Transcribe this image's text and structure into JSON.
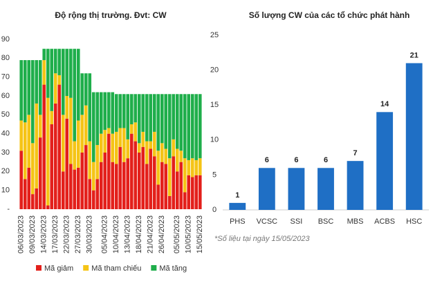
{
  "chart_data": [
    {
      "type": "stacked_bar",
      "title": "Độ rộng thị trường. Đvt: CW",
      "categories": [
        "06/03/2023",
        null,
        null,
        "09/03/2023",
        null,
        null,
        "14/03/2023",
        null,
        null,
        "17/03/2023",
        null,
        null,
        "22/03/2023",
        null,
        null,
        "27/03/2023",
        null,
        null,
        "30/03/2023",
        null,
        null,
        null,
        "05/04/2023",
        null,
        null,
        "10/04/2023",
        null,
        null,
        "13/04/2023",
        null,
        null,
        "18/04/2023",
        null,
        null,
        "21/04/2023",
        null,
        null,
        "26/04/2023",
        null,
        null,
        null,
        "05/05/2023",
        null,
        null,
        "10/05/2023",
        null,
        null,
        "15/05/2023"
      ],
      "series": [
        {
          "name": "Mã giảm",
          "color": "#e3201b",
          "values": [
            31,
            16,
            22,
            8,
            11,
            38,
            66,
            2,
            45,
            56,
            66,
            20,
            48,
            24,
            21,
            22,
            30,
            34,
            16,
            10,
            16,
            25,
            30,
            40,
            25,
            24,
            33,
            25,
            27,
            40,
            36,
            30,
            33,
            24,
            32,
            28,
            13,
            25,
            24,
            7,
            28,
            20,
            25,
            9,
            18,
            17,
            18,
            18
          ]
        },
        {
          "name": "Mã tham chiếu",
          "color": "#f5c416",
          "values": [
            16,
            30,
            28,
            27,
            45,
            12,
            13,
            57,
            7,
            16,
            5,
            30,
            12,
            35,
            15,
            25,
            20,
            21,
            20,
            15,
            18,
            15,
            12,
            3,
            15,
            17,
            10,
            18,
            10,
            5,
            10,
            5,
            8,
            12,
            4,
            13,
            18,
            10,
            8,
            20,
            9,
            12,
            6,
            18,
            8,
            10,
            8,
            9
          ]
        },
        {
          "name": "Mã tăng",
          "color": "#1fae4b",
          "values": [
            32,
            33,
            29,
            44,
            23,
            29,
            6,
            26,
            33,
            13,
            14,
            35,
            25,
            26,
            49,
            38,
            22,
            17,
            36,
            37,
            28,
            22,
            20,
            19,
            22,
            20,
            18,
            18,
            24,
            16,
            15,
            26,
            20,
            25,
            25,
            20,
            30,
            26,
            29,
            34,
            24,
            29,
            30,
            34,
            35,
            34,
            35,
            34
          ]
        }
      ],
      "ylim": [
        0,
        90
      ],
      "yticks": [
        {
          "value": 0,
          "label": "-"
        },
        10,
        20,
        30,
        40,
        50,
        60,
        70,
        80,
        90
      ],
      "legend": "bottom"
    },
    {
      "type": "bar",
      "title": "Số lượng CW của các tổ chức phát hành",
      "categories": [
        "PHS",
        "VCSC",
        "SSI",
        "BSC",
        "MBS",
        "ACBS",
        "HSC"
      ],
      "values": [
        1,
        6,
        6,
        6,
        7,
        14,
        21
      ],
      "color": "#1f6fc5",
      "ylim": [
        0,
        25
      ],
      "yticks": [
        0,
        5,
        10,
        15,
        20,
        25
      ],
      "note": "*Số liệu tại ngày 15/05/2023"
    }
  ]
}
